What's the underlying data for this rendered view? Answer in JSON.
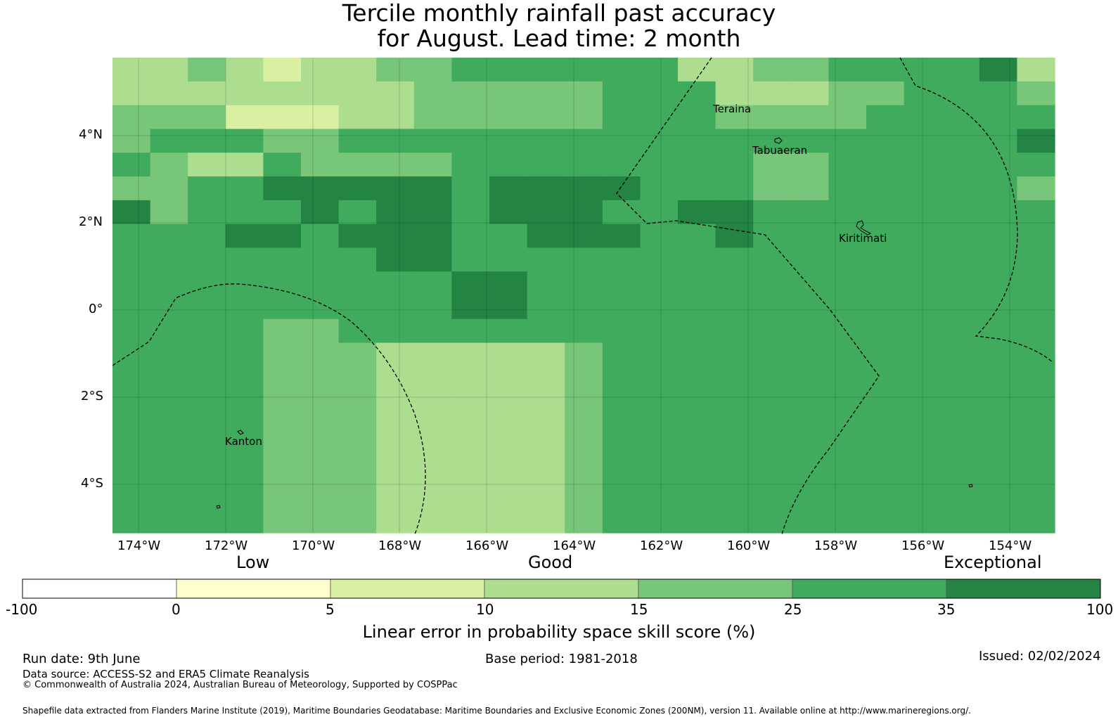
{
  "title": {
    "line1": "Tercile monthly rainfall past accuracy",
    "line2": "for August. Lead time: 2 month"
  },
  "map": {
    "lon_labels": [
      "174°W",
      "172°W",
      "170°W",
      "168°W",
      "166°W",
      "164°W",
      "162°W",
      "160°W",
      "158°W",
      "156°W",
      "154°W"
    ],
    "lat_labels": [
      "4°N",
      "2°N",
      "0°",
      "2°S",
      "4°S"
    ],
    "places": [
      "Teraina",
      "Tabuaeran",
      "Kiritimati",
      "Kanton"
    ],
    "grid": {
      "rows": [
        "3343233445555553344555563",
        "3333333344444555333445554",
        "4442223344444555444455555",
        "4555445555555555555555556",
        "5433544445555555544555555",
        "4455666665666655544555554",
        "6455565665666556655555555",
        "5556656665566655655555555",
        "5555555665555555555555555",
        "5555555556655555555555555",
        "5555555556655555555555555",
        "5555445555555555555555555",
        "5555444333334555555555555",
        "5555444333334555555555555",
        "5555444333334555555555555",
        "5555444333334555555555555",
        "5555444333334555555555555",
        "5555444333334555555555555",
        "5555444333334555555555555",
        "5555444333334555555555555"
      ]
    }
  },
  "legend": {
    "categories": [
      "Low",
      "Good",
      "Exceptional"
    ],
    "bins": [
      {
        "from": "-100",
        "to": "0",
        "color": "#ffffff"
      },
      {
        "from": "0",
        "to": "5",
        "color": "#ffffcc"
      },
      {
        "from": "5",
        "to": "10",
        "color": "#d9f0a3"
      },
      {
        "from": "10",
        "to": "15",
        "color": "#addd8e"
      },
      {
        "from": "15",
        "to": "25",
        "color": "#78c679"
      },
      {
        "from": "25",
        "to": "35",
        "color": "#41ab5d"
      },
      {
        "from": "35",
        "to": "100",
        "color": "#238443"
      }
    ],
    "ticks": [
      "-100",
      "0",
      "5",
      "10",
      "15",
      "25",
      "35",
      "100"
    ],
    "label": "Linear error in probability space skill score (%)"
  },
  "footer": {
    "run_date": "Run date: 9th June",
    "base_period": "Base period: 1981-2018",
    "issued": "Issued: 02/02/2024",
    "data_source": "Data source: ACCESS-S2 and ERA5 Climate Reanalysis",
    "copyright": "© Commonwealth of Australia 2024, Australian Bureau of Meteorology, Supported by COSPPac",
    "shapefile": "Shapefile data extracted from Flanders Marine Institute (2019), Maritime Boundaries Geodatabase: Maritime Boundaries and Exclusive Economic Zones (200NM), version 11. Available online at http://www.marineregions.org/."
  }
}
